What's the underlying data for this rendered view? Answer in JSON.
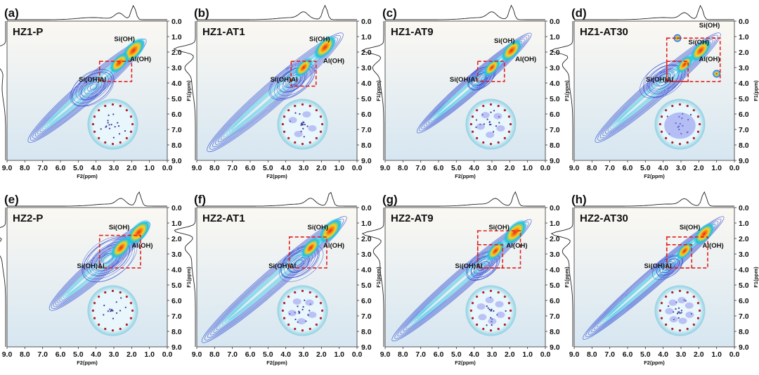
{
  "figure": {
    "watermark": ""
  },
  "colors": {
    "contour_low": "#1f3fd0",
    "contour_mid": "#19c2e6",
    "contour_high": "#ffd21a",
    "contour_peak": "#e8251b",
    "box_dash": "#e02020",
    "bg_top": "#fbf8f2",
    "bg_bottom": "#d6e6f1"
  },
  "chart_data": [
    {
      "panel": "(a)",
      "title": "HZ1-P",
      "type": "heatmap",
      "xlabel": "F2(ppm)",
      "ylabel": "F1(ppm)",
      "x_ticks": [
        "9.0",
        "8.0",
        "7.0",
        "6.0",
        "5.0",
        "4.0",
        "3.0",
        "2.0",
        "1.0",
        "0.0"
      ],
      "y_ticks": [
        "0.0",
        "1.0",
        "2.0",
        "3.0",
        "4.0",
        "5.0",
        "6.0",
        "7.0",
        "8.0",
        "9.0"
      ],
      "xlim": [
        9.0,
        0.0
      ],
      "ylim": [
        0.0,
        9.0
      ],
      "annotations": [
        {
          "text": "Si(OH)",
          "x": 2.4,
          "y": 1.3
        },
        {
          "text": "Al(OH)",
          "x": 1.5,
          "y": 2.6
        },
        {
          "text": "Si(OH)Al",
          "x": 4.2,
          "y": 3.9
        }
      ],
      "box": {
        "x1": 3.8,
        "x2": 2.0,
        "y1": 2.6,
        "y2": 3.9
      },
      "diagonal": {
        "from": 7.8,
        "to": 1.2,
        "width": 0.55
      },
      "peaks": [
        {
          "x": 1.9,
          "y": 1.9,
          "intensity": 1.0
        },
        {
          "x": 2.7,
          "y": 2.7,
          "intensity": 0.7
        }
      ],
      "cross_peaks": [],
      "cloud": {
        "x": 4.2,
        "y": 4.3,
        "size": 1.3
      },
      "inset": {
        "pores": 0
      }
    },
    {
      "panel": "(b)",
      "title": "HZ1-AT1",
      "type": "heatmap",
      "xlabel": "F2(ppm)",
      "ylabel": "F1(ppm)",
      "x_ticks": [
        "9.0",
        "8.0",
        "7.0",
        "6.0",
        "5.0",
        "4.0",
        "3.0",
        "2.0",
        "1.0",
        "0.0"
      ],
      "y_ticks": [
        "0.0",
        "1.0",
        "2.0",
        "3.0",
        "4.0",
        "5.0",
        "6.0",
        "7.0",
        "8.0",
        "9.0"
      ],
      "xlim": [
        9.0,
        0.0
      ],
      "ylim": [
        0.0,
        9.0
      ],
      "annotations": [
        {
          "text": "Si(OH)",
          "x": 2.1,
          "y": 1.3
        },
        {
          "text": "Al(OH)",
          "x": 1.3,
          "y": 2.7
        },
        {
          "text": "Si(OH)Al",
          "x": 4.1,
          "y": 3.9
        }
      ],
      "box": {
        "x1": 3.7,
        "x2": 2.3,
        "y1": 2.6,
        "y2": 4.2
      },
      "diagonal": {
        "from": 8.4,
        "to": 0.8,
        "width": 0.6
      },
      "peaks": [
        {
          "x": 1.8,
          "y": 1.7,
          "intensity": 0.9
        },
        {
          "x": 3.0,
          "y": 3.0,
          "intensity": 0.6
        }
      ],
      "cross_peaks": [],
      "cloud": {
        "x": 3.6,
        "y": 3.9,
        "size": 1.2
      },
      "inset": {
        "pores": 4
      }
    },
    {
      "panel": "(c)",
      "title": "HZ1-AT9",
      "type": "heatmap",
      "xlabel": "F2(ppm)",
      "ylabel": "F1(ppm)",
      "x_ticks": [
        "9.0",
        "8.0",
        "7.0",
        "6.0",
        "5.0",
        "4.0",
        "3.0",
        "2.0",
        "1.0",
        "0.0"
      ],
      "y_ticks": [
        "0.0",
        "1.0",
        "2.0",
        "3.0",
        "4.0",
        "5.0",
        "6.0",
        "7.0",
        "8.0",
        "9.0"
      ],
      "xlim": [
        9.0,
        0.0
      ],
      "ylim": [
        0.0,
        9.0
      ],
      "annotations": [
        {
          "text": "Si(OH)",
          "x": 2.3,
          "y": 1.4
        },
        {
          "text": "Al(OH)",
          "x": 1.1,
          "y": 2.6
        },
        {
          "text": "Si(OH)Al",
          "x": 4.6,
          "y": 3.9
        }
      ],
      "box": {
        "x1": 3.8,
        "x2": 2.3,
        "y1": 2.6,
        "y2": 3.9
      },
      "diagonal": {
        "from": 7.2,
        "to": 0.8,
        "width": 0.45
      },
      "peaks": [
        {
          "x": 1.9,
          "y": 1.9,
          "intensity": 0.8
        },
        {
          "x": 3.0,
          "y": 3.0,
          "intensity": 0.5
        }
      ],
      "cross_peaks": [],
      "cloud": {
        "x": 3.6,
        "y": 3.7,
        "size": 0.8
      },
      "inset": {
        "pores": 5
      }
    },
    {
      "panel": "(d)",
      "title": "HZ1-AT30",
      "type": "heatmap",
      "xlabel": "F2(ppm)",
      "ylabel": "F1(ppm)",
      "x_ticks": [
        "9.0",
        "8.0",
        "7.0",
        "6.0",
        "5.0",
        "4.0",
        "3.0",
        "2.0",
        "1.0",
        "0.0"
      ],
      "y_ticks": [
        "0.0",
        "1.0",
        "2.0",
        "3.0",
        "4.0",
        "5.0",
        "6.0",
        "7.0",
        "8.0",
        "9.0"
      ],
      "xlim": [
        9.0,
        0.0
      ],
      "ylim": [
        0.0,
        9.0
      ],
      "annotations": [
        {
          "text": "Si(OH)",
          "x": 1.4,
          "y": 0.4
        },
        {
          "text": "Si(OH)",
          "x": 2.0,
          "y": 1.5
        },
        {
          "text": "Al(OH)",
          "x": 1.4,
          "y": 2.6
        },
        {
          "text": "Si(OH)Al",
          "x": 4.2,
          "y": 3.9
        }
      ],
      "box": {
        "x1": 3.8,
        "x2": 0.8,
        "y1": 1.1,
        "y2": 3.9
      },
      "box2": {
        "x1": 3.8,
        "x2": 2.6,
        "y1": 2.6,
        "y2": 3.9
      },
      "diagonal": {
        "from": 7.8,
        "to": 0.8,
        "width": 0.55
      },
      "peaks": [
        {
          "x": 1.9,
          "y": 1.9,
          "intensity": 0.8
        },
        {
          "x": 2.8,
          "y": 2.8,
          "intensity": 0.5
        }
      ],
      "cross_peaks": [
        {
          "x": 3.2,
          "y": 1.1
        },
        {
          "x": 1.0,
          "y": 3.4
        }
      ],
      "cloud": {
        "x": 4.0,
        "y": 3.8,
        "size": 1.3
      },
      "inset": {
        "pores": 1
      }
    },
    {
      "panel": "(e)",
      "title": "HZ2-P",
      "type": "heatmap",
      "xlabel": "F2(ppm)",
      "ylabel": "F1(ppm)",
      "x_ticks": [
        "9.0",
        "8.0",
        "7.0",
        "6.0",
        "5.0",
        "4.0",
        "3.0",
        "2.0",
        "1.0",
        "0.0"
      ],
      "y_ticks": [
        "0.0",
        "1.0",
        "2.0",
        "3.0",
        "4.0",
        "5.0",
        "6.0",
        "7.0",
        "8.0",
        "9.0"
      ],
      "xlim": [
        9.0,
        0.0
      ],
      "ylim": [
        0.0,
        9.0
      ],
      "annotations": [
        {
          "text": "Si(OH)",
          "x": 2.7,
          "y": 1.4
        },
        {
          "text": "Al(OH)",
          "x": 1.4,
          "y": 2.6
        },
        {
          "text": "Si(OH)Al",
          "x": 4.3,
          "y": 3.9
        }
      ],
      "box": {
        "x1": 3.8,
        "x2": 1.5,
        "y1": 1.8,
        "y2": 3.9
      },
      "diagonal": {
        "from": 6.6,
        "to": 1.0,
        "width": 0.55
      },
      "peaks": [
        {
          "x": 1.6,
          "y": 1.6,
          "intensity": 1.0
        },
        {
          "x": 2.6,
          "y": 2.6,
          "intensity": 0.8
        }
      ],
      "cross_peaks": [],
      "cloud": {
        "x": 3.3,
        "y": 3.3,
        "size": 1.6
      },
      "inset": {
        "pores": 0
      }
    },
    {
      "panel": "(f)",
      "title": "HZ2-AT1",
      "type": "heatmap",
      "xlabel": "F2(ppm)",
      "ylabel": "F1(ppm)",
      "x_ticks": [
        "9.0",
        "8.0",
        "7.0",
        "6.0",
        "5.0",
        "4.0",
        "3.0",
        "2.0",
        "1.0",
        "0.0"
      ],
      "y_ticks": [
        "0.0",
        "1.0",
        "2.0",
        "3.0",
        "4.0",
        "5.0",
        "6.0",
        "7.0",
        "8.0",
        "9.0"
      ],
      "xlim": [
        9.0,
        0.0
      ],
      "ylim": [
        0.0,
        9.0
      ],
      "annotations": [
        {
          "text": "Si(OH)",
          "x": 2.2,
          "y": 1.4
        },
        {
          "text": "Al(OH)",
          "x": 1.3,
          "y": 2.6
        },
        {
          "text": "Si(OH)Al",
          "x": 4.2,
          "y": 3.9
        }
      ],
      "box": {
        "x1": 3.8,
        "x2": 1.7,
        "y1": 1.9,
        "y2": 3.9
      },
      "diagonal": {
        "from": 8.7,
        "to": 0.6,
        "width": 0.55
      },
      "peaks": [
        {
          "x": 1.5,
          "y": 1.5,
          "intensity": 1.0
        },
        {
          "x": 2.6,
          "y": 2.6,
          "intensity": 0.7
        }
      ],
      "cross_peaks": [],
      "cloud": {
        "x": 3.2,
        "y": 3.6,
        "size": 1.2
      },
      "inset": {
        "pores": 5
      }
    },
    {
      "panel": "(g)",
      "title": "HZ2-AT9",
      "type": "heatmap",
      "xlabel": "F2(ppm)",
      "ylabel": "F1(ppm)",
      "x_ticks": [
        "9.0",
        "8.0",
        "7.0",
        "6.0",
        "5.0",
        "4.0",
        "3.0",
        "2.0",
        "1.0",
        "0.0"
      ],
      "y_ticks": [
        "0.0",
        "1.0",
        "2.0",
        "3.0",
        "4.0",
        "5.0",
        "6.0",
        "7.0",
        "8.0",
        "9.0"
      ],
      "xlim": [
        9.0,
        0.0
      ],
      "ylim": [
        0.0,
        9.0
      ],
      "annotations": [
        {
          "text": "Si(OH)",
          "x": 2.6,
          "y": 1.4
        },
        {
          "text": "Al(OH)",
          "x": 1.6,
          "y": 2.6
        },
        {
          "text": "Si(OH)Al",
          "x": 4.3,
          "y": 3.9
        }
      ],
      "box": {
        "x1": 3.8,
        "x2": 1.4,
        "y1": 1.5,
        "y2": 3.9
      },
      "box2": {
        "x1": 3.8,
        "x2": 2.4,
        "y1": 2.4,
        "y2": 3.9
      },
      "diagonal": {
        "from": 8.6,
        "to": 0.8,
        "width": 0.5
      },
      "peaks": [
        {
          "x": 1.7,
          "y": 1.6,
          "intensity": 1.0
        },
        {
          "x": 2.8,
          "y": 2.8,
          "intensity": 0.6
        }
      ],
      "cross_peaks": [],
      "cloud": {
        "x": 3.5,
        "y": 3.8,
        "size": 1.0
      },
      "inset": {
        "pores": 6
      }
    },
    {
      "panel": "(h)",
      "title": "HZ2-AT30",
      "type": "heatmap",
      "xlabel": "F2(ppm)",
      "ylabel": "F1(ppm)",
      "x_ticks": [
        "9.0",
        "8.0",
        "7.0",
        "6.0",
        "5.0",
        "4.0",
        "3.0",
        "2.0",
        "1.0",
        "0.0"
      ],
      "y_ticks": [
        "0.0",
        "1.0",
        "2.0",
        "3.0",
        "4.0",
        "5.0",
        "6.0",
        "7.0",
        "8.0",
        "9.0"
      ],
      "xlim": [
        9.0,
        0.0
      ],
      "ylim": [
        0.0,
        9.0
      ],
      "annotations": [
        {
          "text": "Si(OH)",
          "x": 2.5,
          "y": 1.4
        },
        {
          "text": "Al(OH)",
          "x": 1.2,
          "y": 2.6
        },
        {
          "text": "Si(OH)Al",
          "x": 4.3,
          "y": 3.9
        }
      ],
      "box": {
        "x1": 3.8,
        "x2": 1.5,
        "y1": 1.9,
        "y2": 3.9
      },
      "box2": {
        "x1": 3.8,
        "x2": 2.4,
        "y1": 2.4,
        "y2": 3.9
      },
      "diagonal": {
        "from": 8.5,
        "to": 0.6,
        "width": 0.45
      },
      "peaks": [
        {
          "x": 1.7,
          "y": 1.7,
          "intensity": 0.8
        },
        {
          "x": 2.8,
          "y": 2.8,
          "intensity": 0.5
        }
      ],
      "cross_peaks": [],
      "cloud": {
        "x": 3.7,
        "y": 3.8,
        "size": 0.8
      },
      "inset": {
        "pores": 7
      }
    }
  ]
}
